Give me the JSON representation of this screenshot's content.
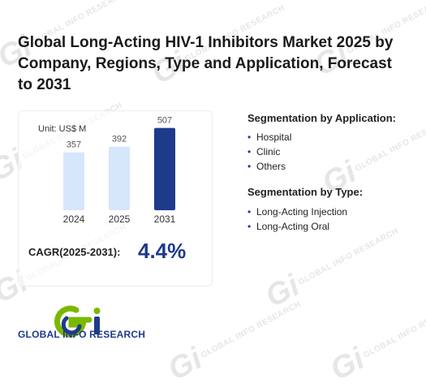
{
  "page": {
    "title": "Global Long-Acting HIV-1 Inhibitors Market 2025 by Company, Regions, Type and Application, Forecast to 2031"
  },
  "watermark": {
    "text": "GLOBAL INFO RESEARCH",
    "glyph": "Gi"
  },
  "chart": {
    "unit_label": "Unit: US$ M",
    "cagr_label": "CAGR(2025-2031):",
    "cagr_value": "4.4%"
  },
  "chart_data": {
    "type": "bar",
    "categories": [
      "2024",
      "2025",
      "2031"
    ],
    "values": [
      357,
      392,
      507
    ],
    "value_labels": [
      "357",
      "392",
      "507"
    ],
    "colors": [
      "#d6e6fb",
      "#d6e6fb",
      "#1e3a8a"
    ],
    "ylim": [
      0,
      600
    ]
  },
  "segmentation": {
    "application": {
      "heading": "Segmentation by Application:",
      "items": [
        "Hospital",
        "Clinic",
        "Others"
      ]
    },
    "type": {
      "heading": "Segmentation by Type:",
      "items": [
        "Long-Acting Injection",
        "Long-Acting Oral"
      ]
    }
  },
  "logo": {
    "text": "GLOBAL INFO RESEARCH",
    "colors": {
      "green": "#7ab800",
      "blue": "#1e3a8a"
    }
  }
}
